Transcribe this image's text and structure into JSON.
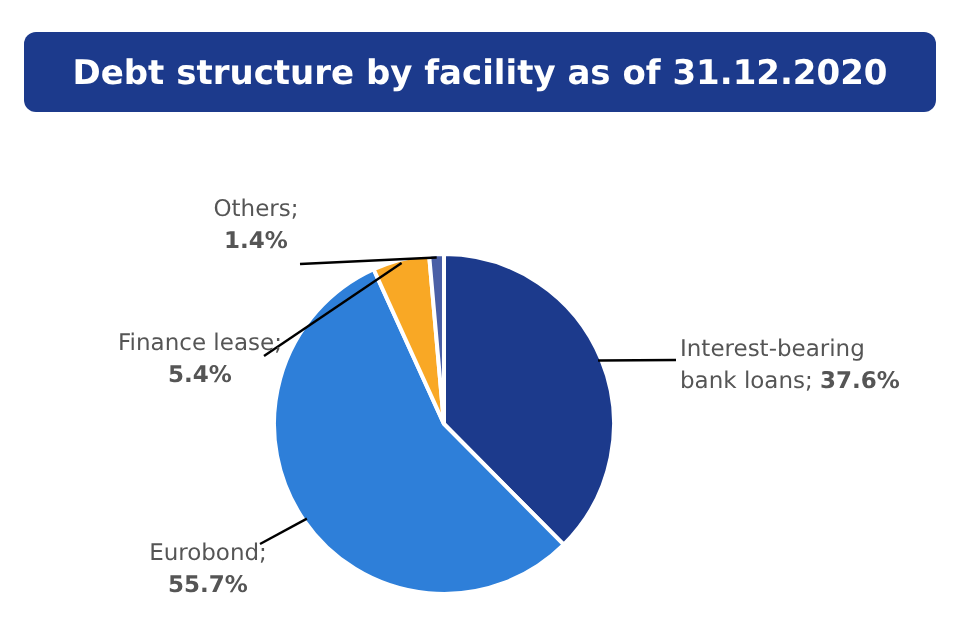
{
  "chart_data": {
    "type": "pie",
    "title": "Debt structure by facility as of 31.12.2020",
    "categories": [
      "Interest-bearing bank loans",
      "Eurobond",
      "Finance lease",
      "Others"
    ],
    "values": [
      37.6,
      55.7,
      5.4,
      1.4
    ],
    "value_labels": [
      "; 37.6%",
      "; 55.7%",
      "; 5.4%",
      "; 1.4%"
    ],
    "colors": [
      "#1c3a8c",
      "#2e7fd9",
      "#f9a825",
      "#4a5fa6"
    ]
  }
}
